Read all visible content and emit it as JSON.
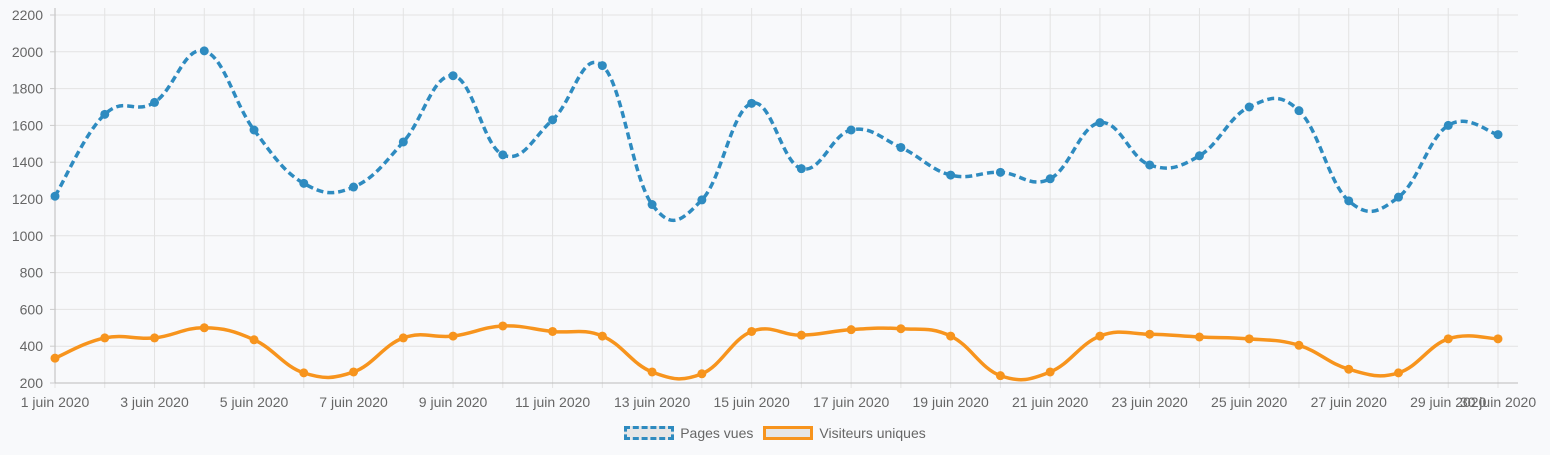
{
  "chart_data": {
    "type": "line",
    "x": [
      "1 juin 2020",
      "2 juin 2020",
      "3 juin 2020",
      "4 juin 2020",
      "5 juin 2020",
      "6 juin 2020",
      "7 juin 2020",
      "8 juin 2020",
      "9 juin 2020",
      "10 juin 2020",
      "11 juin 2020",
      "12 juin 2020",
      "13 juin 2020",
      "14 juin 2020",
      "15 juin 2020",
      "16 juin 2020",
      "17 juin 2020",
      "18 juin 2020",
      "19 juin 2020",
      "20 juin 2020",
      "21 juin 2020",
      "22 juin 2020",
      "23 juin 2020",
      "24 juin 2020",
      "25 juin 2020",
      "26 juin 2020",
      "27 juin 2020",
      "28 juin 2020",
      "29 juin 2020",
      "30 juin 2020"
    ],
    "x_tick_labels": [
      "1 juin 2020",
      "3 juin 2020",
      "5 juin 2020",
      "7 juin 2020",
      "9 juin 2020",
      "11 juin 2020",
      "13 juin 2020",
      "15 juin 2020",
      "17 juin 2020",
      "19 juin 2020",
      "21 juin 2020",
      "23 juin 2020",
      "25 juin 2020",
      "27 juin 2020",
      "29 juin 2020",
      "30 juin 2020"
    ],
    "y_ticks": [
      200,
      400,
      600,
      800,
      1000,
      1200,
      1400,
      1600,
      1800,
      2000,
      2200
    ],
    "ylim": [
      200,
      2200
    ],
    "grid": true,
    "legend_position": "bottom",
    "series": [
      {
        "name": "Pages vues",
        "color": "#2e8bc0",
        "dashed": true,
        "values": [
          1215,
          1660,
          1725,
          2005,
          1575,
          1285,
          1265,
          1510,
          1870,
          1440,
          1630,
          1925,
          1170,
          1195,
          1720,
          1365,
          1575,
          1480,
          1330,
          1345,
          1310,
          1615,
          1385,
          1435,
          1700,
          1680,
          1190,
          1210,
          1600,
          1550
        ]
      },
      {
        "name": "Visiteurs uniques",
        "color": "#f7941d",
        "dashed": false,
        "values": [
          335,
          445,
          445,
          500,
          435,
          255,
          260,
          445,
          455,
          510,
          480,
          455,
          260,
          250,
          480,
          460,
          490,
          495,
          455,
          240,
          260,
          455,
          465,
          450,
          440,
          405,
          275,
          255,
          440,
          440
        ]
      }
    ]
  }
}
